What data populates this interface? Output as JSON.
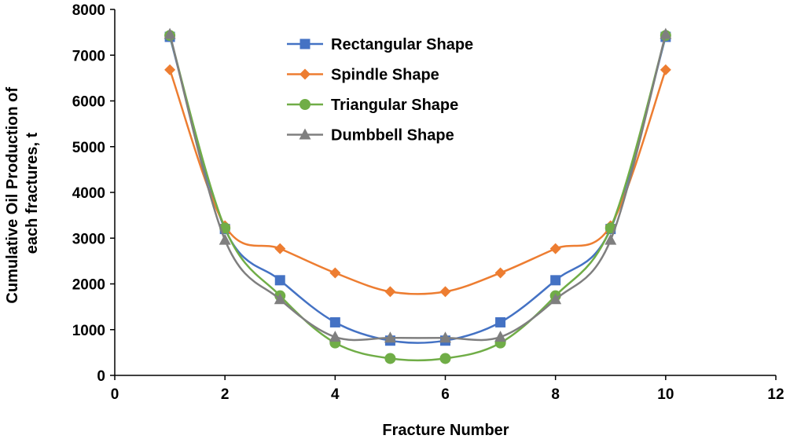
{
  "chart_data": {
    "type": "line",
    "title": "",
    "xlabel": "Fracture Number",
    "ylabel_lines": [
      "Cumulative Oil Production of",
      "each fractures, t"
    ],
    "xlim": [
      0,
      12
    ],
    "ylim": [
      0,
      8000
    ],
    "xticks": [
      0,
      2,
      4,
      6,
      8,
      10,
      12
    ],
    "yticks": [
      0,
      1000,
      2000,
      3000,
      4000,
      5000,
      6000,
      7000,
      8000
    ],
    "grid": false,
    "legend_position": "top-center",
    "x": [
      1,
      2,
      3,
      4,
      5,
      6,
      7,
      8,
      9,
      10
    ],
    "series": [
      {
        "name": "Rectangular Shape",
        "color": "#4472C4",
        "marker": "square",
        "values": [
          7400,
          3200,
          2080,
          1160,
          760,
          760,
          1160,
          2080,
          3200,
          7400
        ]
      },
      {
        "name": "Spindle Shape",
        "color": "#ED7D31",
        "marker": "diamond",
        "values": [
          6680,
          3270,
          2770,
          2240,
          1830,
          1830,
          2240,
          2770,
          3270,
          6680
        ]
      },
      {
        "name": "Triangular Shape",
        "color": "#70AD47",
        "marker": "circle",
        "values": [
          7430,
          3220,
          1740,
          710,
          370,
          370,
          710,
          1740,
          3220,
          7430
        ]
      },
      {
        "name": "Dumbbell Shape",
        "color": "#7F7F7F",
        "marker": "triangle",
        "values": [
          7460,
          2960,
          1660,
          840,
          820,
          820,
          840,
          1660,
          2960,
          7460
        ]
      }
    ]
  }
}
